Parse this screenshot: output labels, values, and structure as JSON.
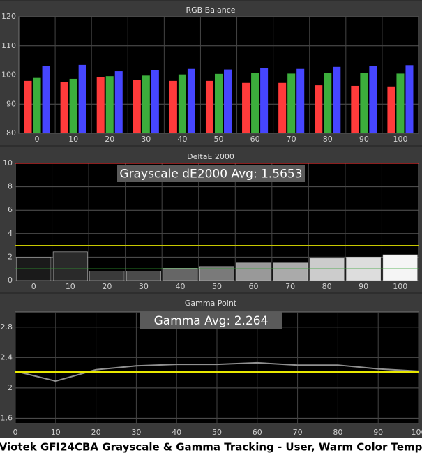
{
  "chart_data": [
    {
      "type": "bar",
      "title": "RGB Balance",
      "categories": [
        "0",
        "10",
        "20",
        "30",
        "40",
        "50",
        "60",
        "70",
        "80",
        "90",
        "100"
      ],
      "series": [
        {
          "name": "Red",
          "color": "#ff3b3b",
          "values": [
            98,
            97.7,
            99.2,
            98.4,
            98,
            98,
            97.3,
            97.3,
            96.5,
            96.3,
            96.1
          ]
        },
        {
          "name": "Green",
          "color": "#3cae3c",
          "values": [
            99,
            98.7,
            99.6,
            99.8,
            100.2,
            100.4,
            100.6,
            100.5,
            100.8,
            100.8,
            100.5
          ]
        },
        {
          "name": "Blue",
          "color": "#4646ff",
          "values": [
            103,
            103.5,
            101.3,
            101.6,
            102.1,
            101.9,
            102.3,
            102.1,
            102.8,
            103,
            103.4
          ]
        }
      ],
      "ylim": [
        80,
        120
      ],
      "yticks": [
        80,
        90,
        100,
        110,
        120
      ],
      "grid": true
    },
    {
      "type": "bar",
      "title": "DeltaE 2000",
      "annotation": "Grayscale dE2000 Avg: 1.5653",
      "categories": [
        "0",
        "10",
        "20",
        "30",
        "40",
        "50",
        "60",
        "70",
        "80",
        "90",
        "100"
      ],
      "values": [
        2.0,
        2.45,
        0.8,
        0.8,
        1.05,
        1.2,
        1.5,
        1.5,
        1.9,
        2.0,
        2.2
      ],
      "colors": [
        "#1a1a1a",
        "#2a2a2a",
        "#3a3a3a",
        "#4a4a4a",
        "#666666",
        "#7a7a7a",
        "#999999",
        "#aaaaaa",
        "#cccccc",
        "#dddddd",
        "#f5f5f5"
      ],
      "reference_lines": [
        {
          "value": 10,
          "color": "#e03030"
        },
        {
          "value": 3,
          "color": "#c8c800"
        },
        {
          "value": 1,
          "color": "#30a030"
        }
      ],
      "ylim": [
        0,
        10
      ],
      "yticks": [
        0,
        2,
        4,
        6,
        8,
        10
      ],
      "grid": true
    },
    {
      "type": "line",
      "title": "Gamma Point",
      "annotation": "Gamma Avg: 2.264",
      "x": [
        0,
        10,
        20,
        30,
        40,
        50,
        60,
        70,
        80,
        90,
        100
      ],
      "values": [
        2.22,
        2.09,
        2.24,
        2.29,
        2.31,
        2.31,
        2.33,
        2.3,
        2.3,
        2.25,
        2.22
      ],
      "color": "#909090",
      "reference_lines": [
        {
          "value": 2.21,
          "color": "#e8e800"
        }
      ],
      "xlim": [
        0,
        100
      ],
      "xticks": [
        0,
        10,
        20,
        30,
        40,
        50,
        60,
        70,
        80,
        90,
        100
      ],
      "ylim": [
        1.53,
        3.0
      ],
      "yticks": [
        1.6,
        2,
        2.4,
        2.8
      ],
      "grid": true
    }
  ],
  "caption": "Viotek GFI24CBA Grayscale & Gamma Tracking - User, Warm Color Temp"
}
